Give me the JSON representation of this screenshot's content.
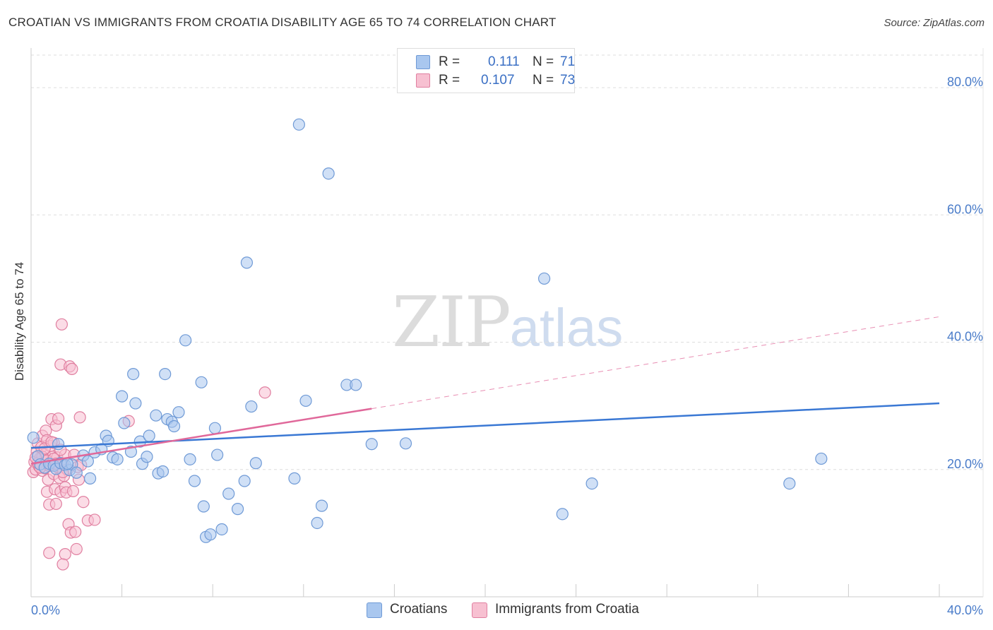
{
  "header": {
    "title": "CROATIAN VS IMMIGRANTS FROM CROATIA DISABILITY AGE 65 TO 74 CORRELATION CHART",
    "source": "Source: ZipAtlas.com"
  },
  "watermark": {
    "zip": "ZIP",
    "atlas": "atlas"
  },
  "legend": {
    "series": [
      {
        "r_label": "R =",
        "r_value": "0.111",
        "n_label": "N =",
        "n_value": "71",
        "color": "#a9c7ef",
        "border": "#6f9ad6"
      },
      {
        "r_label": "R =",
        "r_value": "0.107",
        "n_label": "N =",
        "n_value": "73",
        "color": "#f7c0d1",
        "border": "#e07fa0"
      }
    ]
  },
  "bottom_legend": {
    "series1": "Croatians",
    "series2": "Immigrants from Croatia"
  },
  "chart_data": {
    "type": "scatter",
    "title": "CROATIAN VS IMMIGRANTS FROM CROATIA DISABILITY AGE 65 TO 74 CORRELATION CHART",
    "ylabel": "Disability Age 65 to 74",
    "xlabel": "",
    "xlim": [
      0,
      40
    ],
    "ylim": [
      0,
      86
    ],
    "x_tick_labels": [
      {
        "value": 0,
        "label": "0.0%"
      },
      {
        "value": 40,
        "label": "40.0%"
      }
    ],
    "x_minor_ticks": [
      4,
      8,
      12,
      16,
      20,
      24,
      28,
      32,
      36,
      40
    ],
    "y_ticks": [
      {
        "value": 20,
        "label": "20.0%"
      },
      {
        "value": 40,
        "label": "40.0%"
      },
      {
        "value": 60,
        "label": "60.0%"
      },
      {
        "value": 80,
        "label": "80.0%"
      }
    ],
    "series": [
      {
        "name": "Croatians",
        "color": "#a9c7ef",
        "stroke": "#6f9ad6",
        "trend": {
          "x0": 0,
          "y0": 23.4,
          "x1": 40,
          "y1": 30.4,
          "color": "#3a78d4",
          "dashed_from": null
        },
        "points": [
          [
            0.1,
            25.0
          ],
          [
            0.3,
            22.1
          ],
          [
            0.4,
            20.8
          ],
          [
            0.6,
            20.3
          ],
          [
            0.8,
            20.9
          ],
          [
            1.0,
            20.6
          ],
          [
            1.1,
            20.1
          ],
          [
            1.2,
            24.0
          ],
          [
            1.3,
            21.0
          ],
          [
            1.5,
            20.7
          ],
          [
            1.7,
            19.9
          ],
          [
            1.8,
            20.8
          ],
          [
            2.0,
            19.5
          ],
          [
            2.3,
            22.2
          ],
          [
            2.5,
            21.3
          ],
          [
            2.6,
            18.6
          ],
          [
            2.8,
            22.7
          ],
          [
            3.1,
            23.2
          ],
          [
            3.3,
            25.3
          ],
          [
            3.4,
            24.5
          ],
          [
            3.6,
            21.9
          ],
          [
            3.8,
            21.6
          ],
          [
            4.0,
            31.5
          ],
          [
            4.1,
            27.3
          ],
          [
            4.4,
            22.8
          ],
          [
            4.5,
            35.0
          ],
          [
            4.6,
            30.4
          ],
          [
            4.8,
            24.4
          ],
          [
            4.9,
            20.9
          ],
          [
            5.1,
            22.0
          ],
          [
            5.2,
            25.3
          ],
          [
            5.5,
            28.5
          ],
          [
            5.6,
            19.4
          ],
          [
            5.8,
            19.7
          ],
          [
            5.9,
            35.0
          ],
          [
            6.0,
            27.9
          ],
          [
            6.2,
            27.5
          ],
          [
            6.3,
            26.8
          ],
          [
            6.5,
            29.0
          ],
          [
            6.8,
            40.3
          ],
          [
            7.0,
            21.6
          ],
          [
            7.2,
            18.2
          ],
          [
            7.5,
            33.7
          ],
          [
            7.6,
            14.2
          ],
          [
            7.7,
            9.4
          ],
          [
            7.9,
            9.8
          ],
          [
            8.1,
            26.5
          ],
          [
            8.2,
            22.3
          ],
          [
            8.4,
            10.6
          ],
          [
            8.7,
            16.2
          ],
          [
            9.1,
            13.8
          ],
          [
            9.4,
            18.2
          ],
          [
            9.5,
            52.5
          ],
          [
            9.7,
            29.9
          ],
          [
            9.9,
            21.0
          ],
          [
            11.6,
            18.6
          ],
          [
            11.8,
            74.2
          ],
          [
            12.1,
            30.8
          ],
          [
            12.6,
            11.6
          ],
          [
            12.8,
            14.3
          ],
          [
            13.1,
            66.5
          ],
          [
            13.9,
            33.3
          ],
          [
            14.3,
            33.3
          ],
          [
            15.0,
            24.0
          ],
          [
            16.5,
            24.1
          ],
          [
            22.6,
            50.0
          ],
          [
            23.4,
            13.0
          ],
          [
            24.7,
            17.8
          ],
          [
            33.4,
            17.8
          ],
          [
            34.8,
            21.7
          ],
          [
            1.6,
            20.9
          ]
        ]
      },
      {
        "name": "Immigrants from Croatia",
        "color": "#f7c0d1",
        "stroke": "#e07fa0",
        "trend": {
          "x0": 0,
          "y0": 20.9,
          "x1": 40,
          "y1": 44.0,
          "color": "#e0689a",
          "solid_until_x": 15.0
        },
        "points": [
          [
            0.1,
            19.6
          ],
          [
            0.15,
            21.2
          ],
          [
            0.2,
            20.0
          ],
          [
            0.25,
            22.8
          ],
          [
            0.3,
            24.1
          ],
          [
            0.35,
            20.5
          ],
          [
            0.4,
            21.8
          ],
          [
            0.45,
            23.5
          ],
          [
            0.5,
            25.3
          ],
          [
            0.5,
            19.8
          ],
          [
            0.55,
            21.5
          ],
          [
            0.6,
            22.4
          ],
          [
            0.6,
            20.2
          ],
          [
            0.65,
            26.1
          ],
          [
            0.7,
            24.6
          ],
          [
            0.7,
            16.5
          ],
          [
            0.75,
            18.4
          ],
          [
            0.8,
            21.0
          ],
          [
            0.8,
            14.5
          ],
          [
            0.85,
            23.7
          ],
          [
            0.9,
            20.7
          ],
          [
            0.9,
            27.9
          ],
          [
            0.95,
            22.0
          ],
          [
            1.0,
            24.2
          ],
          [
            1.0,
            19.3
          ],
          [
            1.05,
            16.9
          ],
          [
            1.1,
            26.9
          ],
          [
            1.1,
            14.6
          ],
          [
            1.15,
            21.9
          ],
          [
            1.2,
            28.0
          ],
          [
            1.2,
            20.3
          ],
          [
            1.25,
            18.7
          ],
          [
            1.3,
            16.5
          ],
          [
            1.3,
            36.5
          ],
          [
            1.35,
            42.8
          ],
          [
            1.4,
            20.8
          ],
          [
            1.45,
            19.0
          ],
          [
            1.5,
            17.2
          ],
          [
            1.5,
            22.3
          ],
          [
            1.55,
            16.4
          ],
          [
            1.6,
            20.0
          ],
          [
            1.65,
            11.4
          ],
          [
            1.7,
            36.2
          ],
          [
            1.75,
            10.1
          ],
          [
            1.8,
            35.8
          ],
          [
            1.85,
            16.6
          ],
          [
            1.9,
            22.3
          ],
          [
            1.95,
            10.2
          ],
          [
            2.0,
            7.5
          ],
          [
            2.05,
            20.4
          ],
          [
            2.1,
            18.4
          ],
          [
            2.15,
            28.2
          ],
          [
            2.2,
            20.7
          ],
          [
            2.3,
            14.9
          ],
          [
            2.5,
            12.0
          ],
          [
            2.8,
            12.1
          ],
          [
            4.3,
            27.6
          ],
          [
            10.3,
            32.1
          ],
          [
            0.3,
            21.0
          ],
          [
            0.4,
            20.3
          ],
          [
            0.5,
            22.0
          ],
          [
            0.6,
            23.3
          ],
          [
            0.7,
            21.4
          ],
          [
            0.8,
            20.6
          ],
          [
            0.9,
            24.3
          ],
          [
            1.0,
            21.7
          ],
          [
            1.1,
            20.9
          ],
          [
            1.3,
            23.1
          ],
          [
            1.4,
            19.6
          ],
          [
            0.8,
            6.9
          ],
          [
            1.5,
            6.7
          ],
          [
            1.4,
            5.1
          ],
          [
            0.2,
            21.9
          ]
        ]
      }
    ]
  }
}
